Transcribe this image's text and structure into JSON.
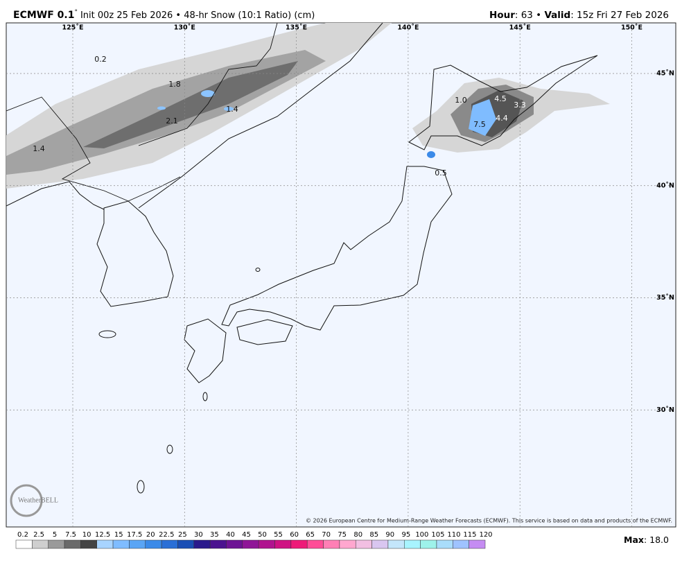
{
  "header": {
    "model": "ECMWF 0.1",
    "degree": "°",
    "info": "Init 00z 25 Feb 2026 • 48-hr Snow (10:1 Ratio) (cm)",
    "hour_label": "Hour",
    "hour": ": 63 • ",
    "valid_label": "Valid",
    "valid": ": 15z Fri 27 Feb 2026"
  },
  "graticule": {
    "lons": [
      {
        "value": 125,
        "label": "125˚E"
      },
      {
        "value": 130,
        "label": "130˚E"
      },
      {
        "value": 135,
        "label": "135˚E"
      },
      {
        "value": 140,
        "label": "140˚E"
      },
      {
        "value": 145,
        "label": "145˚E"
      },
      {
        "value": 150,
        "label": "150˚E"
      }
    ],
    "lats": [
      {
        "value": 45,
        "label": "45˚N"
      },
      {
        "value": 40,
        "label": "40˚N"
      },
      {
        "value": 35,
        "label": "35˚N"
      },
      {
        "value": 30,
        "label": "30˚N"
      }
    ]
  },
  "map_labels": [
    "0.2",
    "1.8",
    "1.4",
    "2.1",
    "1.4",
    "1.0",
    "4.5",
    "3.3",
    "7.5",
    "4.4",
    "0.5"
  ],
  "watermark": "WeatherBELL",
  "copyright": "© 2026 European Centre for Medium-Range Weather Forecasts (ECMWF). This service is based on data and products of the ECMWF.",
  "legend": {
    "labels": [
      "0.2",
      "2.5",
      "5",
      "7.5",
      "10",
      "12.5",
      "15",
      "17.5",
      "20",
      "22.5",
      "25",
      "30",
      "35",
      "40",
      "45",
      "50",
      "55",
      "60",
      "65",
      "70",
      "75",
      "80",
      "85",
      "90",
      "95",
      "100",
      "105",
      "110",
      "115",
      "120"
    ],
    "colors": [
      "#ffffff",
      "#cfcfcf",
      "#9a9a9a",
      "#6a6a6a",
      "#444444",
      "#a8d4ff",
      "#7fbcff",
      "#5aa5f5",
      "#3b8ae8",
      "#2a6fd6",
      "#1a4fb5",
      "#2a1a8c",
      "#4b128f",
      "#6d1394",
      "#8f1597",
      "#b0148f",
      "#cf1383",
      "#ee1a78",
      "#ff4d97",
      "#ff7fb5",
      "#ffa7cf",
      "#f2bfe2",
      "#d9c6f0",
      "#c4e6fb",
      "#a8f4ff",
      "#9ef2ea",
      "#a9ddfb",
      "#9fc3ff",
      "#c58cf2"
    ]
  },
  "max_label": "Max",
  "max": ": 18.0"
}
